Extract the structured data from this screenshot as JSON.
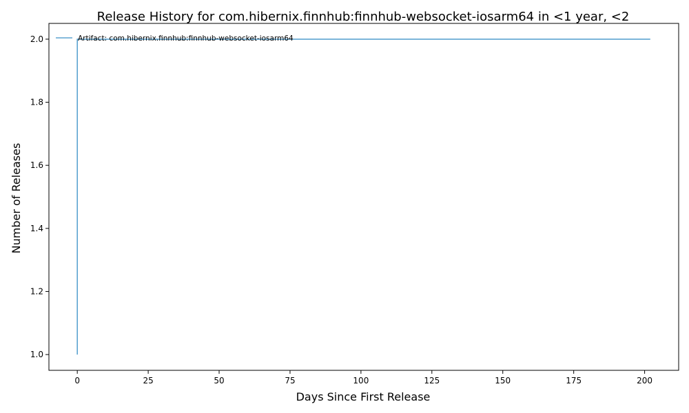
{
  "chart_data": {
    "type": "line",
    "title": "Release History for com.hibernix.finnhub:finnhub-websocket-iosarm64 in <1 year, <2",
    "xlabel": "Days Since First Release",
    "ylabel": "Number of Releases",
    "xlim": [
      -10,
      212
    ],
    "ylim": [
      0.95,
      2.05
    ],
    "xticks": [
      0,
      25,
      50,
      75,
      100,
      125,
      150,
      175,
      200
    ],
    "yticks": [
      1.0,
      1.2,
      1.4,
      1.6,
      1.8,
      2.0
    ],
    "xtick_labels": [
      "0",
      "25",
      "50",
      "75",
      "100",
      "125",
      "150",
      "175",
      "200"
    ],
    "ytick_labels": [
      "1.0",
      "1.2",
      "1.4",
      "1.6",
      "1.8",
      "2.0"
    ],
    "legend_position": "top-left",
    "grid": false,
    "series": [
      {
        "name": "Artifact: com.hibernix.finnhub:finnhub-websocket-iosarm64",
        "color": "#5ba3d0",
        "step": "post",
        "x": [
          0,
          0,
          202
        ],
        "y": [
          1,
          2,
          2
        ]
      }
    ]
  }
}
